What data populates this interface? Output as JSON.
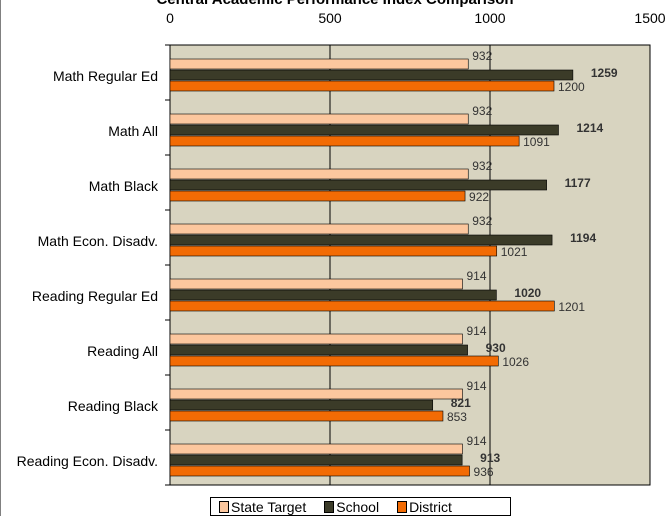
{
  "chart_data": {
    "type": "bar",
    "orientation": "horizontal",
    "title": "Central Academic Performance Index Comparison",
    "xlim": [
      0,
      1500
    ],
    "x_ticks": [
      "0",
      "500",
      "1000",
      "1500"
    ],
    "categories": [
      "Math Regular Ed",
      "Math All",
      "Math Black",
      "Math Econ. Disadv.",
      "Reading Regular Ed",
      "Reading All",
      "Reading Black",
      "Reading Econ. Disadv."
    ],
    "series": [
      {
        "name": "State Target",
        "color": "#fcc79e",
        "values": [
          932,
          932,
          932,
          932,
          914,
          914,
          914,
          914
        ],
        "labels": [
          "932",
          "932",
          "932",
          "932",
          "914",
          "914",
          "914",
          "914"
        ],
        "label_bold": false
      },
      {
        "name": "School",
        "color": "#3b3b28",
        "values": [
          1259,
          1214,
          1177,
          1194,
          1020,
          930,
          821,
          913
        ],
        "labels": [
          "1259",
          "1214",
          "1177",
          "1194",
          "1020",
          "930",
          "821",
          "913"
        ],
        "label_bold": true
      },
      {
        "name": "District",
        "color": "#f26b04",
        "values": [
          1200,
          1091,
          922,
          1021,
          1201,
          1026,
          853,
          936
        ],
        "labels": [
          "1200",
          "1091",
          "922",
          "1021",
          "1201",
          "1026",
          "853",
          "936"
        ],
        "label_bold": false
      }
    ],
    "plot_background": "#d8d4c0",
    "legend": "bottom"
  }
}
